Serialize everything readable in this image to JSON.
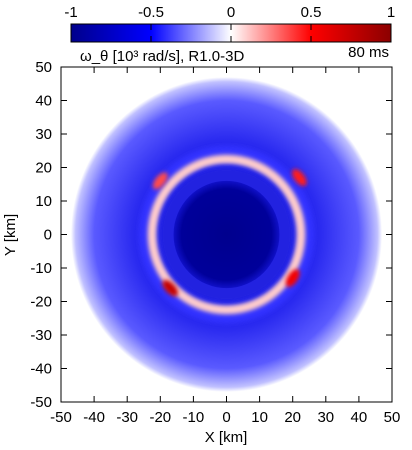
{
  "chart_data": {
    "type": "heatmap",
    "title": "ω_θ [10³ rad/s], R1.0-3D",
    "time_label": "80 ms",
    "xlabel": "X [km]",
    "ylabel": "Y [km]",
    "xlim": [
      -50,
      50
    ],
    "ylim": [
      -50,
      50
    ],
    "xticks": [
      -50,
      -40,
      -30,
      -20,
      -10,
      0,
      10,
      20,
      30,
      40,
      50
    ],
    "yticks": [
      -50,
      -40,
      -30,
      -20,
      -10,
      0,
      10,
      20,
      30,
      40,
      50
    ],
    "colorbar": {
      "range": [
        -1,
        1
      ],
      "ticks": [
        -1,
        -0.5,
        0,
        0.5,
        1
      ],
      "colors": [
        "#00008b",
        "#0000ff",
        "#ffffff",
        "#ff0000",
        "#8b0000"
      ]
    },
    "field": {
      "outer_disk_radius": 47,
      "inner_core_radius": 16,
      "outer_region_value": -0.85,
      "core_value": -0.95,
      "shear_ring_radius": 22.5,
      "shear_ring_value": 0.1,
      "hotspots": [
        {
          "x": -17,
          "y": -16,
          "value": 0.75
        },
        {
          "x": 20,
          "y": -13,
          "value": 0.55
        },
        {
          "x": 22,
          "y": 17,
          "value": 0.45
        },
        {
          "x": -20,
          "y": 16,
          "value": 0.35
        }
      ]
    }
  }
}
